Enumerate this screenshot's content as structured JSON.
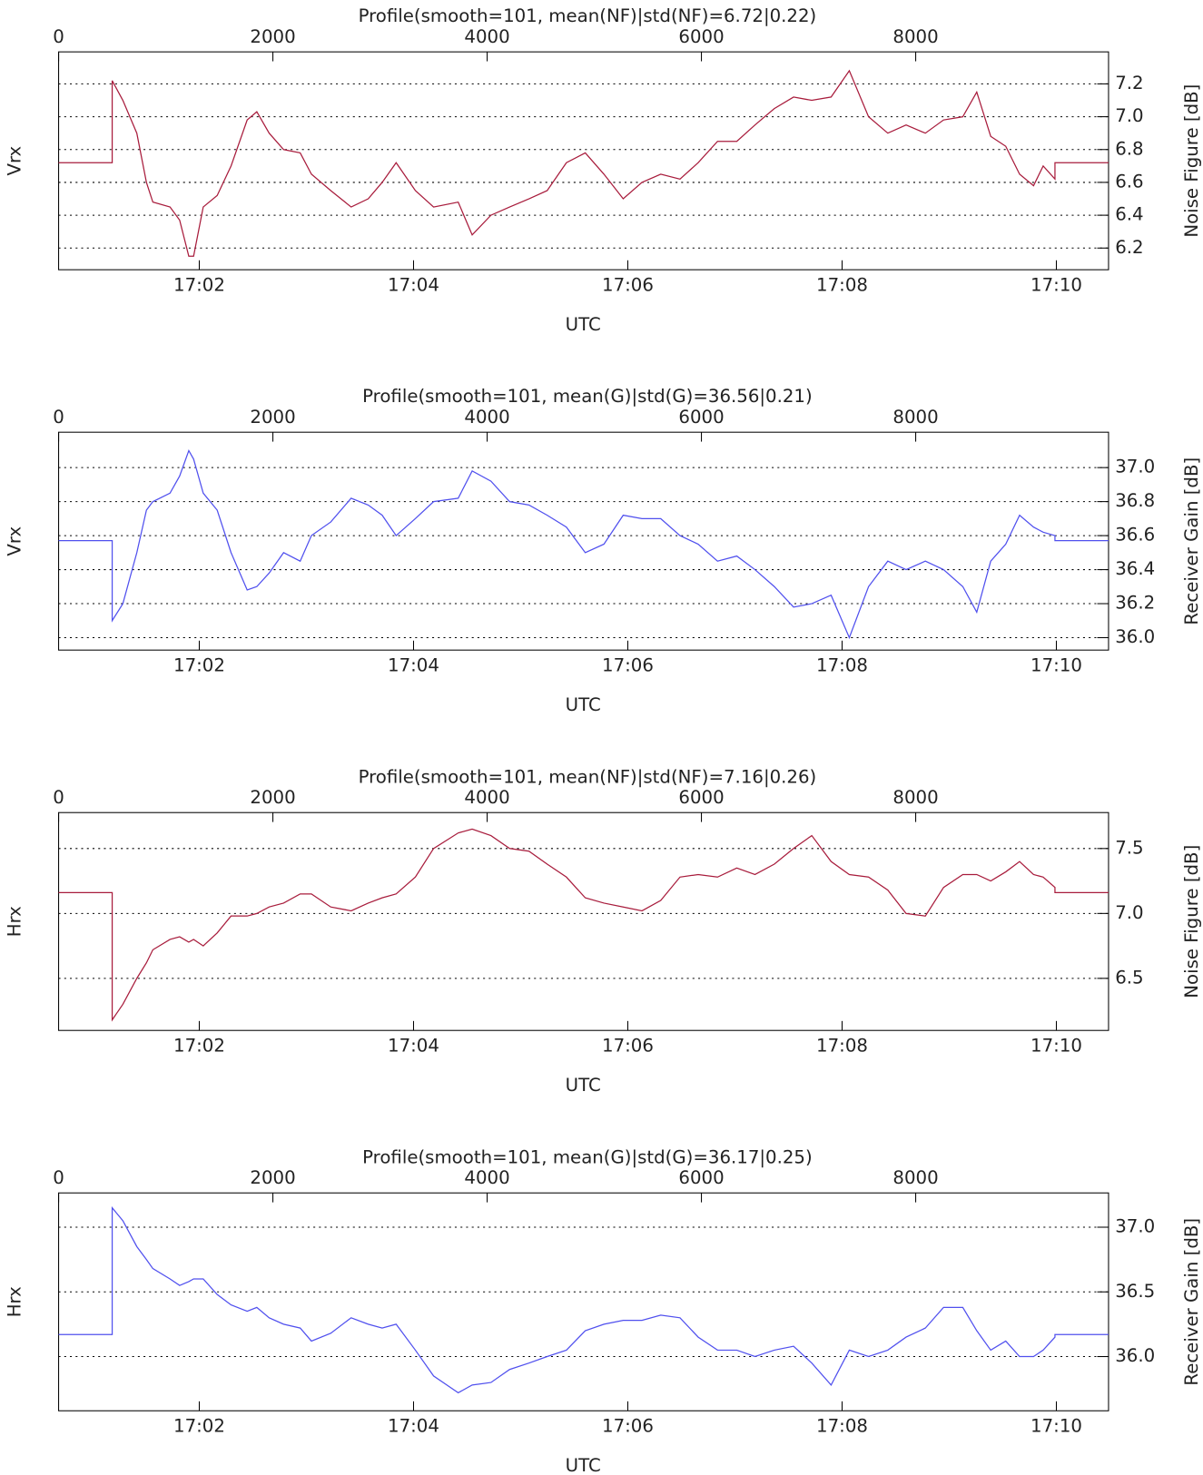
{
  "chart_data": [
    {
      "type": "line",
      "title": "Profile(smooth=101, mean(NF)|std(NF)=6.72|0.22)",
      "ylabel_left": "Vrx",
      "ylabel": "Noise Figure [dB]",
      "xlabel": "UTC",
      "color": "#a81c3c",
      "grid": true,
      "xlim": [
        0,
        9800
      ],
      "xticks": [
        0,
        2000,
        4000,
        6000,
        8000
      ],
      "x2ticks": [
        {
          "value": 1313,
          "label": "17:02"
        },
        {
          "value": 3313,
          "label": "17:04"
        },
        {
          "value": 5313,
          "label": "17:06"
        },
        {
          "value": 7313,
          "label": "17:08"
        },
        {
          "value": 9313,
          "label": "17:10"
        }
      ],
      "ylim": [
        6.068,
        7.395
      ],
      "yticks": [
        6.2,
        6.4,
        6.6,
        6.8,
        {
          "value": 7,
          "label": "7.0"
        },
        7.2
      ],
      "x": [
        0,
        500,
        500,
        600,
        730,
        820,
        880,
        1040,
        1130,
        1215,
        1260,
        1350,
        1480,
        1610,
        1760,
        1850,
        1965,
        2100,
        2255,
        2360,
        2540,
        2730,
        2890,
        3020,
        3150,
        3330,
        3500,
        3730,
        3860,
        4035,
        4210,
        4390,
        4560,
        4740,
        4916,
        5090,
        5270,
        5445,
        5620,
        5800,
        5970,
        6150,
        6330,
        6500,
        6680,
        6860,
        7030,
        7210,
        7380,
        7560,
        7740,
        7910,
        8090,
        8260,
        8440,
        8570,
        8700,
        8840,
        8970,
        9100,
        9190,
        9300,
        9300,
        9800
      ],
      "values": [
        6.72,
        6.72,
        7.22,
        7.1,
        6.9,
        6.6,
        6.48,
        6.45,
        6.37,
        6.15,
        6.15,
        6.45,
        6.52,
        6.7,
        6.98,
        7.03,
        6.9,
        6.8,
        6.78,
        6.65,
        6.55,
        6.45,
        6.5,
        6.6,
        6.72,
        6.55,
        6.45,
        6.48,
        6.28,
        6.4,
        6.45,
        6.5,
        6.55,
        6.72,
        6.78,
        6.65,
        6.5,
        6.6,
        6.65,
        6.62,
        6.72,
        6.85,
        6.85,
        6.95,
        7.05,
        7.12,
        7.1,
        7.12,
        7.28,
        7.0,
        6.9,
        6.95,
        6.9,
        6.98,
        7.0,
        7.15,
        6.88,
        6.82,
        6.65,
        6.58,
        6.7,
        6.62,
        6.72,
        6.72
      ]
    },
    {
      "type": "line",
      "title": "Profile(smooth=101, mean(G)|std(G)=36.56|0.21)",
      "ylabel_left": "Vrx",
      "ylabel": "Receiver Gain [dB]",
      "xlabel": "UTC",
      "color": "#5050ee",
      "grid": true,
      "xlim": [
        0,
        9800
      ],
      "xticks": [
        0,
        2000,
        4000,
        6000,
        8000
      ],
      "x2ticks": [
        {
          "value": 1313,
          "label": "17:02"
        },
        {
          "value": 3313,
          "label": "17:04"
        },
        {
          "value": 5313,
          "label": "17:06"
        },
        {
          "value": 7313,
          "label": "17:08"
        },
        {
          "value": 9313,
          "label": "17:10"
        }
      ],
      "ylim": [
        35.927,
        37.208
      ],
      "yticks": [
        {
          "value": 36,
          "label": "36.0"
        },
        36.2,
        36.4,
        36.6,
        36.8,
        {
          "value": 37,
          "label": "37.0"
        }
      ],
      "x": [
        0,
        500,
        500,
        600,
        730,
        820,
        880,
        1040,
        1130,
        1215,
        1260,
        1350,
        1480,
        1610,
        1760,
        1850,
        1965,
        2100,
        2255,
        2360,
        2540,
        2730,
        2890,
        3020,
        3150,
        3330,
        3500,
        3730,
        3860,
        4035,
        4210,
        4390,
        4560,
        4740,
        4916,
        5090,
        5270,
        5445,
        5620,
        5800,
        5970,
        6150,
        6330,
        6500,
        6680,
        6860,
        7030,
        7210,
        7380,
        7560,
        7740,
        7910,
        8090,
        8260,
        8440,
        8570,
        8700,
        8840,
        8970,
        9100,
        9190,
        9300,
        9300,
        9800
      ],
      "values": [
        36.57,
        36.57,
        36.1,
        36.2,
        36.5,
        36.75,
        36.8,
        36.85,
        36.95,
        37.1,
        37.05,
        36.85,
        36.75,
        36.5,
        36.28,
        36.3,
        36.38,
        36.5,
        36.45,
        36.6,
        36.68,
        36.82,
        36.78,
        36.72,
        36.6,
        36.7,
        36.8,
        36.82,
        36.98,
        36.92,
        36.8,
        36.78,
        36.72,
        36.65,
        36.5,
        36.55,
        36.72,
        36.7,
        36.7,
        36.6,
        36.55,
        36.45,
        36.48,
        36.4,
        36.3,
        36.18,
        36.2,
        36.25,
        36.0,
        36.3,
        36.45,
        36.4,
        36.45,
        36.4,
        36.3,
        36.15,
        36.45,
        36.55,
        36.72,
        36.65,
        36.62,
        36.6,
        36.57,
        36.57
      ]
    },
    {
      "type": "line",
      "title": "Profile(smooth=101, mean(NF)|std(NF)=7.16|0.26)",
      "ylabel_left": "Hrx",
      "ylabel": "Noise Figure [dB]",
      "xlabel": "UTC",
      "color": "#a81c3c",
      "grid": true,
      "xlim": [
        0,
        9800
      ],
      "xticks": [
        0,
        2000,
        4000,
        6000,
        8000
      ],
      "x2ticks": [
        {
          "value": 1313,
          "label": "17:02"
        },
        {
          "value": 3313,
          "label": "17:04"
        },
        {
          "value": 5313,
          "label": "17:06"
        },
        {
          "value": 7313,
          "label": "17:08"
        },
        {
          "value": 9313,
          "label": "17:10"
        }
      ],
      "ylim": [
        6.099,
        7.777
      ],
      "yticks": [
        6.5,
        {
          "value": 7,
          "label": "7.0"
        },
        7.5
      ],
      "x": [
        0,
        500,
        500,
        600,
        730,
        820,
        880,
        1040,
        1130,
        1215,
        1260,
        1350,
        1480,
        1610,
        1760,
        1850,
        1965,
        2100,
        2255,
        2360,
        2540,
        2730,
        2890,
        3020,
        3150,
        3330,
        3500,
        3730,
        3860,
        4035,
        4210,
        4390,
        4560,
        4740,
        4916,
        5090,
        5270,
        5445,
        5620,
        5800,
        5970,
        6150,
        6330,
        6500,
        6680,
        6860,
        7030,
        7210,
        7380,
        7560,
        7740,
        7910,
        8090,
        8260,
        8440,
        8570,
        8700,
        8840,
        8970,
        9100,
        9190,
        9300,
        9300,
        9800
      ],
      "values": [
        7.16,
        7.16,
        6.18,
        6.3,
        6.5,
        6.62,
        6.72,
        6.8,
        6.82,
        6.78,
        6.8,
        6.75,
        6.85,
        6.98,
        6.98,
        7.0,
        7.05,
        7.08,
        7.15,
        7.15,
        7.05,
        7.02,
        7.08,
        7.12,
        7.15,
        7.28,
        7.5,
        7.62,
        7.65,
        7.6,
        7.5,
        7.48,
        7.38,
        7.28,
        7.12,
        7.08,
        7.05,
        7.02,
        7.1,
        7.28,
        7.3,
        7.28,
        7.35,
        7.3,
        7.38,
        7.5,
        7.6,
        7.4,
        7.3,
        7.28,
        7.18,
        7.0,
        6.98,
        7.2,
        7.3,
        7.3,
        7.25,
        7.32,
        7.4,
        7.3,
        7.28,
        7.2,
        7.16,
        7.16
      ]
    },
    {
      "type": "line",
      "title": "Profile(smooth=101, mean(G)|std(G)=36.17|0.25)",
      "ylabel_left": "Hrx",
      "ylabel": "Receiver Gain [dB]",
      "xlabel": "UTC",
      "color": "#5050ee",
      "grid": true,
      "xlim": [
        0,
        9800
      ],
      "xticks": [
        0,
        2000,
        4000,
        6000,
        8000
      ],
      "x2ticks": [
        {
          "value": 1313,
          "label": "17:02"
        },
        {
          "value": 3313,
          "label": "17:04"
        },
        {
          "value": 5313,
          "label": "17:06"
        },
        {
          "value": 7313,
          "label": "17:08"
        },
        {
          "value": 9313,
          "label": "17:10"
        }
      ],
      "ylim": [
        35.581,
        37.265
      ],
      "yticks": [
        {
          "value": 36,
          "label": "36.0"
        },
        36.5,
        {
          "value": 37,
          "label": "37.0"
        }
      ],
      "x": [
        0,
        500,
        500,
        600,
        730,
        820,
        880,
        1040,
        1130,
        1215,
        1260,
        1350,
        1480,
        1610,
        1760,
        1850,
        1965,
        2100,
        2255,
        2360,
        2540,
        2730,
        2890,
        3020,
        3150,
        3330,
        3500,
        3730,
        3860,
        4035,
        4210,
        4390,
        4560,
        4740,
        4916,
        5090,
        5270,
        5445,
        5620,
        5800,
        5970,
        6150,
        6330,
        6500,
        6680,
        6860,
        7030,
        7210,
        7380,
        7560,
        7740,
        7910,
        8090,
        8260,
        8440,
        8570,
        8700,
        8840,
        8970,
        9100,
        9190,
        9300,
        9300,
        9800
      ],
      "values": [
        36.17,
        36.17,
        37.15,
        37.05,
        36.85,
        36.75,
        36.68,
        36.6,
        36.55,
        36.58,
        36.6,
        36.6,
        36.48,
        36.4,
        36.35,
        36.38,
        36.3,
        36.25,
        36.22,
        36.12,
        36.18,
        36.3,
        36.25,
        36.22,
        36.25,
        36.05,
        35.85,
        35.72,
        35.78,
        35.8,
        35.9,
        35.95,
        36.0,
        36.05,
        36.2,
        36.25,
        36.28,
        36.28,
        36.32,
        36.3,
        36.15,
        36.05,
        36.05,
        36.0,
        36.05,
        36.08,
        35.95,
        35.78,
        36.05,
        36.0,
        36.05,
        36.15,
        36.22,
        36.38,
        36.38,
        36.2,
        36.05,
        36.12,
        36.0,
        36.0,
        36.05,
        36.15,
        36.17,
        36.17
      ]
    }
  ]
}
